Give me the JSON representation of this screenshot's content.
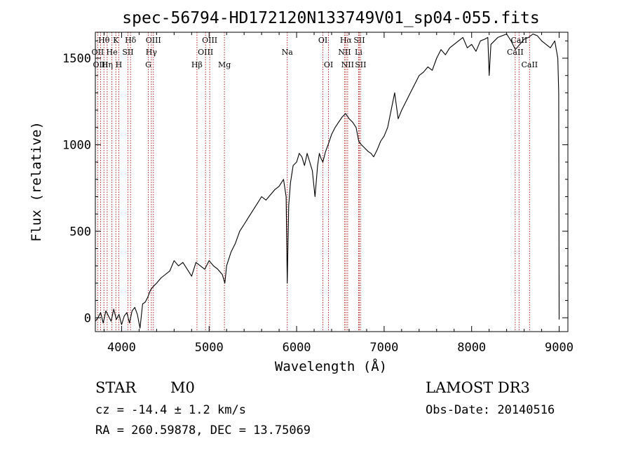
{
  "chart_data": {
    "type": "line",
    "title": "spec-56794-HD172120N133749V01_sp04-055.fits",
    "xlabel": "Wavelength (Å)",
    "ylabel": "Flux (relative)",
    "xlim": [
      3700,
      9100
    ],
    "ylim": [
      -80,
      1650
    ],
    "x_ticks": [
      4000,
      5000,
      6000,
      7000,
      8000,
      9000
    ],
    "y_ticks": [
      0,
      500,
      1000,
      1500
    ],
    "grid": false,
    "legend": "none",
    "line_color": "#000000",
    "marker_color": "#b22222",
    "series": [
      {
        "x": [
          3700,
          3730,
          3760,
          3790,
          3820,
          3850,
          3880,
          3910,
          3940,
          3970,
          4000,
          4030,
          4060,
          4090,
          4120,
          4150,
          4180,
          4210,
          4240,
          4270,
          4300,
          4330,
          4360,
          4400,
          4450,
          4500,
          4550,
          4600,
          4650,
          4700,
          4750,
          4800,
          4850,
          4900,
          4950,
          5000,
          5050,
          5100,
          5150,
          5180,
          5200,
          5250,
          5300,
          5350,
          5400,
          5450,
          5500,
          5550,
          5600,
          5650,
          5700,
          5750,
          5800,
          5850,
          5880,
          5893,
          5910,
          5930,
          5960,
          6000,
          6030,
          6060,
          6090,
          6120,
          6150,
          6180,
          6210,
          6240,
          6260,
          6280,
          6300,
          6330,
          6360,
          6400,
          6440,
          6480,
          6520,
          6560,
          6600,
          6640,
          6680,
          6710,
          6740,
          6780,
          6820,
          6850,
          6880,
          6920,
          6960,
          7000,
          7040,
          7080,
          7120,
          7160,
          7200,
          7250,
          7300,
          7350,
          7400,
          7450,
          7500,
          7550,
          7600,
          7650,
          7700,
          7750,
          7800,
          7850,
          7900,
          7950,
          8000,
          8050,
          8100,
          8150,
          8185,
          8200,
          8220,
          8260,
          8300,
          8350,
          8400,
          8450,
          8500,
          8550,
          8600,
          8650,
          8700,
          8750,
          8800,
          8850,
          8900,
          8950,
          8985,
          8995,
          9000
        ],
        "y": [
          -20,
          0,
          30,
          -30,
          40,
          10,
          -20,
          50,
          -10,
          20,
          -40,
          10,
          30,
          -30,
          40,
          60,
          20,
          -60,
          80,
          90,
          120,
          160,
          180,
          200,
          230,
          250,
          270,
          330,
          300,
          320,
          280,
          240,
          320,
          300,
          280,
          330,
          300,
          280,
          250,
          200,
          300,
          380,
          430,
          500,
          540,
          580,
          620,
          660,
          700,
          680,
          710,
          740,
          760,
          800,
          700,
          200,
          650,
          780,
          880,
          900,
          950,
          930,
          880,
          950,
          900,
          850,
          700,
          880,
          950,
          920,
          900,
          960,
          1000,
          1060,
          1100,
          1130,
          1160,
          1180,
          1150,
          1130,
          1100,
          1020,
          1000,
          980,
          960,
          950,
          930,
          970,
          1020,
          1050,
          1100,
          1200,
          1300,
          1150,
          1200,
          1250,
          1300,
          1350,
          1400,
          1420,
          1450,
          1430,
          1500,
          1550,
          1520,
          1560,
          1580,
          1600,
          1620,
          1560,
          1580,
          1540,
          1600,
          1610,
          1620,
          1400,
          1580,
          1600,
          1620,
          1630,
          1640,
          1600,
          1550,
          1580,
          1610,
          1620,
          1640,
          1630,
          1600,
          1580,
          1560,
          1600,
          1500,
          1300,
          -10
        ]
      }
    ],
    "line_markers": [
      {
        "label": "Hδ",
        "x": 4102,
        "row": 1
      },
      {
        "label": "K",
        "x": 3934,
        "row": 1
      },
      {
        "label": "Hθ",
        "x": 3798,
        "row": 1
      },
      {
        "label": "OIII",
        "x": 4363,
        "row": 1
      },
      {
        "label": "OIII",
        "x": 5007,
        "row": 1
      },
      {
        "label": "OI",
        "x": 6300,
        "row": 1
      },
      {
        "label": "Hα",
        "x": 6563,
        "row": 1
      },
      {
        "label": "SII",
        "x": 6716,
        "row": 1
      },
      {
        "label": "CaII",
        "x": 8542,
        "row": 1
      },
      {
        "label": "OII",
        "x": 3727,
        "row": 2
      },
      {
        "label": "He",
        "x": 3889,
        "row": 2
      },
      {
        "label": "SII",
        "x": 4072,
        "row": 2
      },
      {
        "label": "Hγ",
        "x": 4340,
        "row": 2
      },
      {
        "label": "OIII",
        "x": 4959,
        "row": 2
      },
      {
        "label": "Na",
        "x": 5893,
        "row": 2
      },
      {
        "label": "NII",
        "x": 6548,
        "row": 2
      },
      {
        "label": "Li",
        "x": 6708,
        "row": 2
      },
      {
        "label": "CaII",
        "x": 8498,
        "row": 2
      },
      {
        "label": "OIII",
        "x": 3760,
        "row": 3
      },
      {
        "label": "Hη",
        "x": 3835,
        "row": 3
      },
      {
        "label": "H",
        "x": 3968,
        "row": 3
      },
      {
        "label": "G",
        "x": 4305,
        "row": 3
      },
      {
        "label": "Hβ",
        "x": 4861,
        "row": 3
      },
      {
        "label": "Mg",
        "x": 5175,
        "row": 3
      },
      {
        "label": "OI",
        "x": 6364,
        "row": 3
      },
      {
        "label": "NII",
        "x": 6583,
        "row": 3
      },
      {
        "label": "SII",
        "x": 6731,
        "row": 3
      },
      {
        "label": "CaII",
        "x": 8662,
        "row": 3
      }
    ]
  },
  "info": {
    "object_class": "STAR",
    "subclass": "M0",
    "survey": "LAMOST DR3",
    "redshift": "cz = -14.4 ± 1.2 km/s",
    "obs_date": "Obs-Date: 20140516",
    "coords": "RA = 260.59878, DEC =  13.75069"
  }
}
